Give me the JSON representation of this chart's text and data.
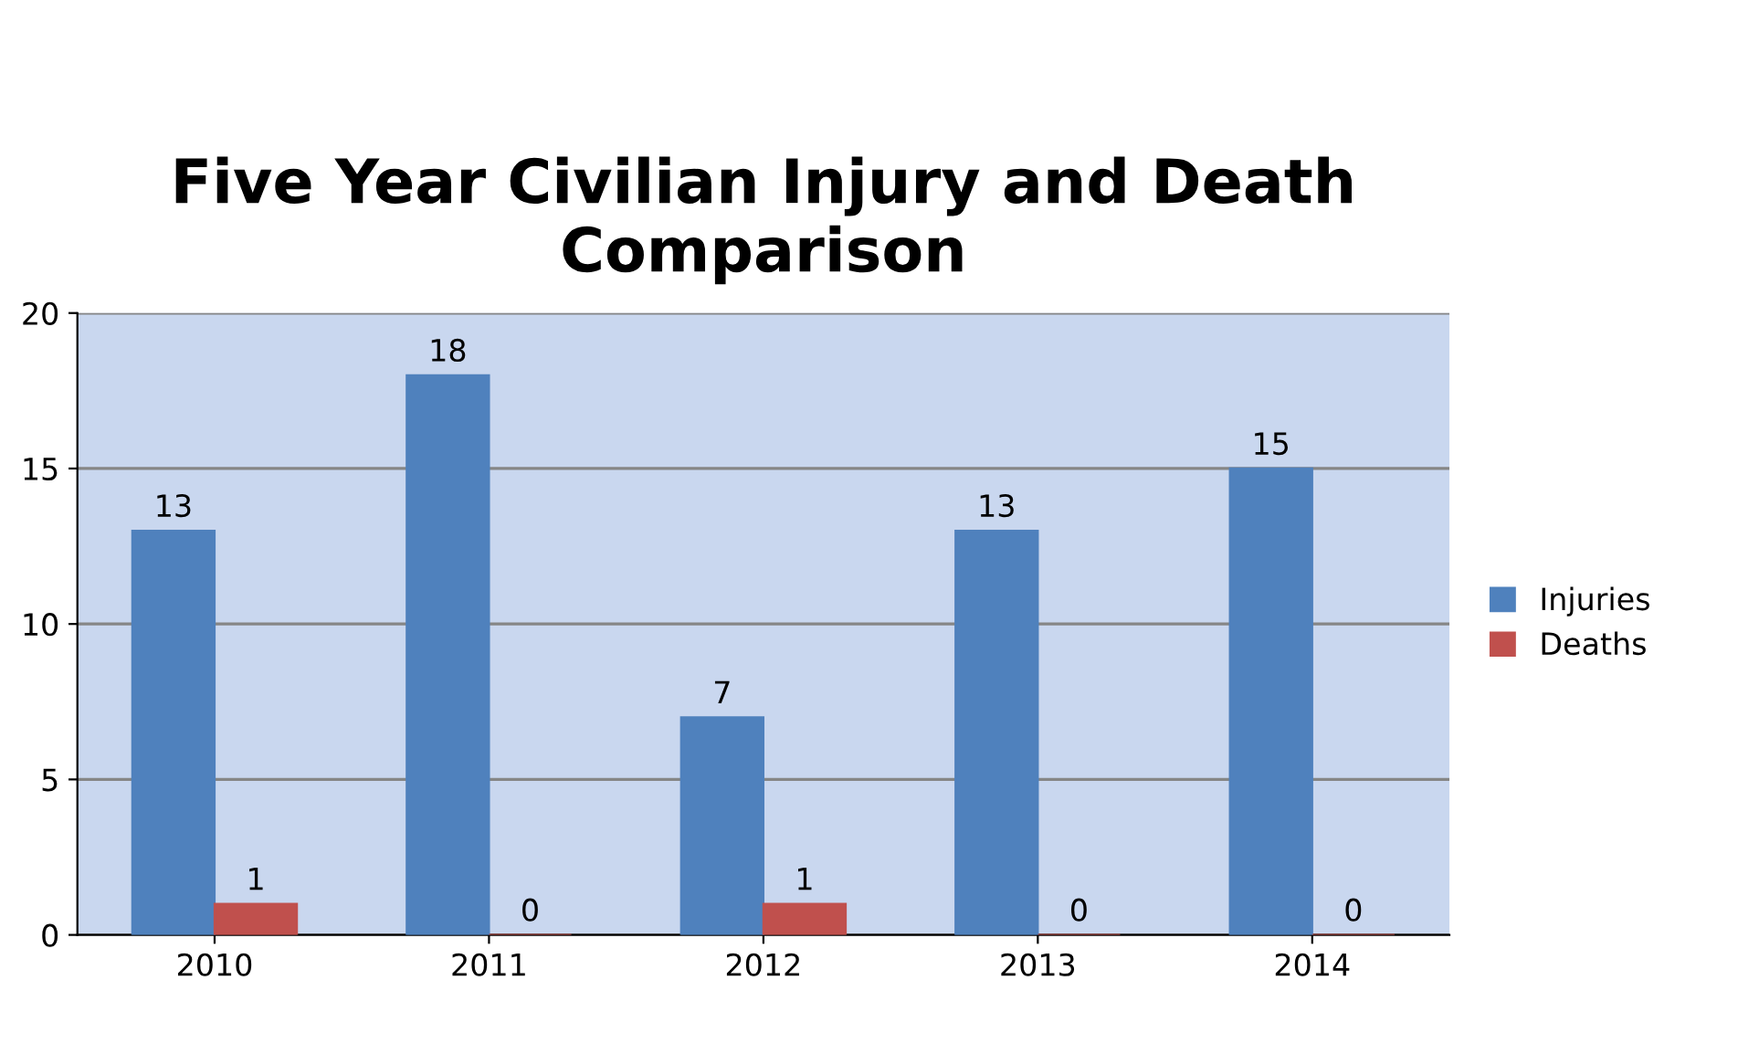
{
  "chart_data": {
    "type": "bar",
    "title": "Five Year Civilian Injury and Death Comparison",
    "categories": [
      "2010",
      "2011",
      "2012",
      "2013",
      "2014"
    ],
    "series": [
      {
        "name": "Injuries",
        "color": "#4f81bd",
        "values": [
          13,
          18,
          7,
          13,
          15
        ]
      },
      {
        "name": "Deaths",
        "color": "#c0504d",
        "values": [
          1,
          0,
          1,
          0,
          0
        ]
      }
    ],
    "ylim": [
      0,
      20
    ],
    "yticks": [
      0,
      5,
      10,
      15,
      20
    ],
    "grid": "y",
    "legend": "right",
    "data_labels": true
  }
}
